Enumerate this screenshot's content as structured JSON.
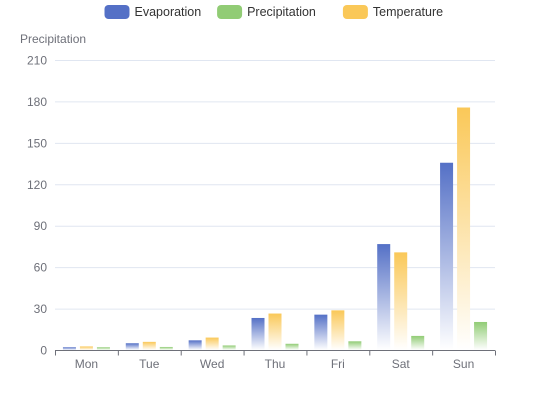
{
  "chart_data": {
    "type": "bar",
    "title": "",
    "xlabel": "",
    "ylabel": "Precipitation",
    "categories": [
      "Mon",
      "Tue",
      "Wed",
      "Thu",
      "Fri",
      "Sat",
      "Sun"
    ],
    "ylim": [
      0,
      210
    ],
    "yticks": [
      0,
      30,
      60,
      90,
      120,
      150,
      180,
      210
    ],
    "series": [
      {
        "name": "Evaporation",
        "color": "#5470c6",
        "values": [
          2.0,
          4.9,
          7.0,
          23.2,
          25.6,
          76.7,
          135.6
        ]
      },
      {
        "name": "Temperature",
        "color": "#fac858",
        "values": [
          2.6,
          5.9,
          9.0,
          26.4,
          28.7,
          70.7,
          175.6
        ]
      },
      {
        "name": "Precipitation",
        "color": "#91cc75",
        "values": [
          2.0,
          2.2,
          3.3,
          4.5,
          6.3,
          10.2,
          20.3
        ]
      }
    ],
    "legend": {
      "position": "top-center",
      "items": [
        {
          "name": "Evaporation",
          "color": "#5470c6"
        },
        {
          "name": "Precipitation",
          "color": "#91cc75"
        },
        {
          "name": "Temperature",
          "color": "#fac858"
        }
      ]
    },
    "grid": true
  }
}
